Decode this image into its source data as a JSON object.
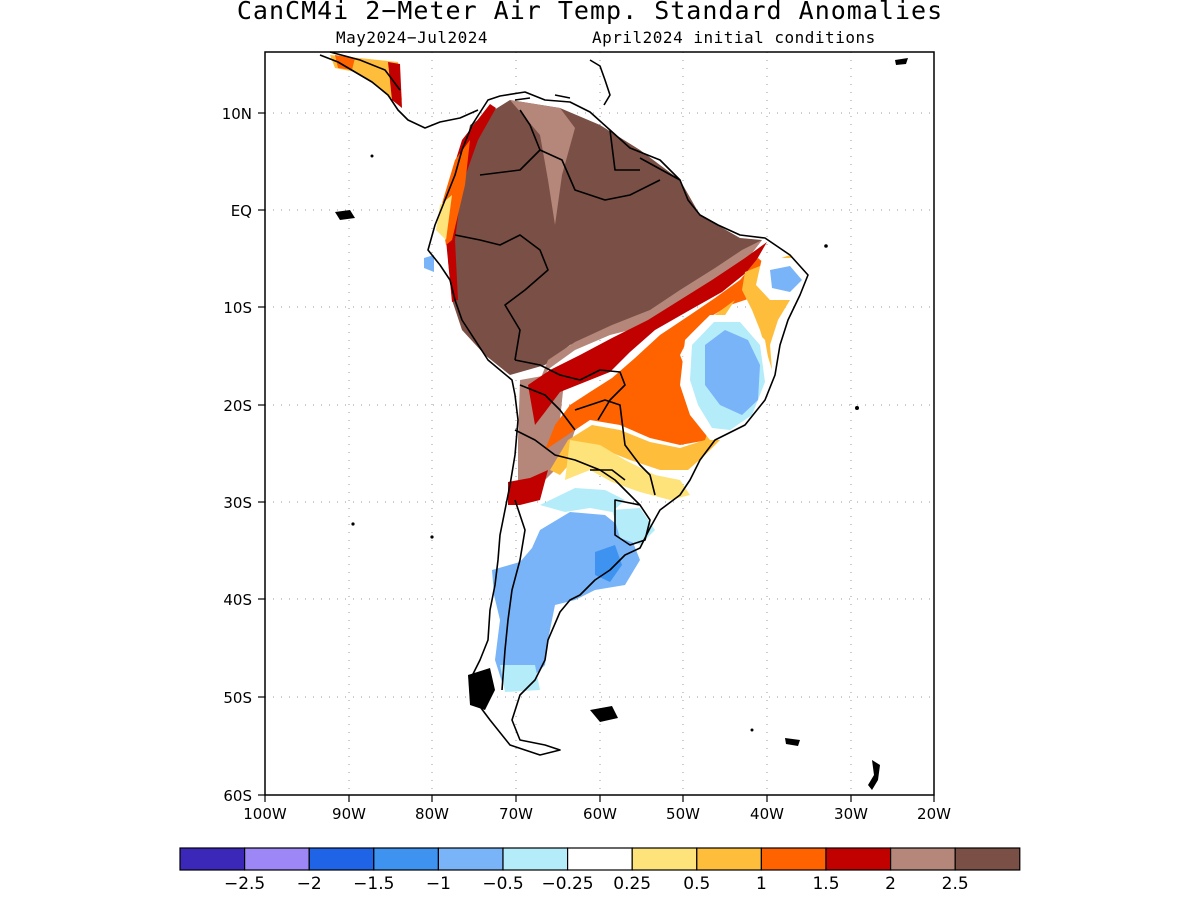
{
  "title": "CanCM4i 2−Meter Air Temp. Standard Anomalies",
  "subtitle_left": "May2024−Jul2024",
  "subtitle_right": "April2024 initial conditions",
  "lat_labels": [
    "10N",
    "EQ",
    "10S",
    "20S",
    "30S",
    "40S",
    "50S",
    "60S"
  ],
  "lon_labels": [
    "100W",
    "90W",
    "80W",
    "70W",
    "60W",
    "50W",
    "40W",
    "30W",
    "20W"
  ],
  "colorbar": {
    "colors": [
      "#3b27b8",
      "#9d86f5",
      "#1f64e6",
      "#3e93f0",
      "#78b4f7",
      "#b4ecfa",
      "#ffffff",
      "#fde37a",
      "#ffbd3c",
      "#ff6300",
      "#c10000",
      "#b4877a",
      "#7a4f45"
    ],
    "labels": [
      "−2.5",
      "−2",
      "−1.5",
      "−1",
      "−0.5",
      "−0.25",
      "0.25",
      "0.5",
      "1",
      "1.5",
      "2",
      "2.5"
    ]
  },
  "anomaly_colors": {
    "brown_dark": "#7a4f45",
    "brown_light": "#b4877a",
    "dark_red": "#c10000",
    "orange": "#ff6300",
    "light_orange": "#ffbd3c",
    "yellow": "#fde37a",
    "light_cyan": "#b4ecfa",
    "light_blue": "#78b4f7",
    "blue": "#3e93f0"
  }
}
